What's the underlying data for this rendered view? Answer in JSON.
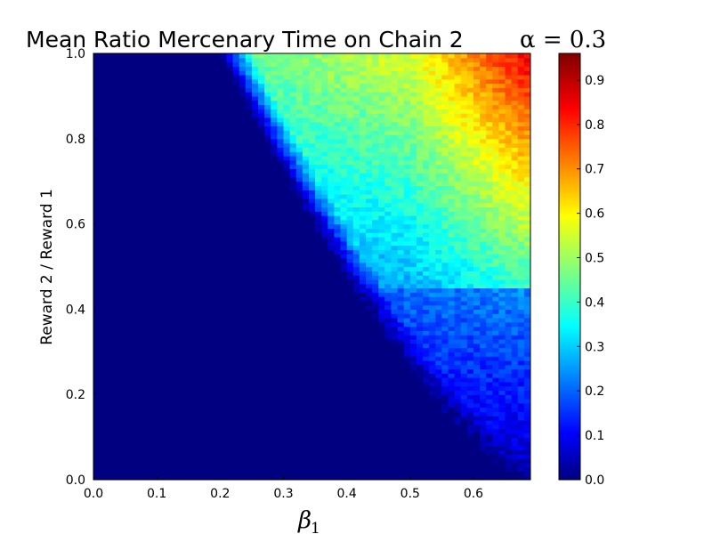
{
  "chart_data": {
    "type": "heatmap",
    "title": "Mean Ratio Mercenary Time on Chain 2",
    "title_param": "α = 0.3",
    "xlabel": "β",
    "xlabel_subscript": "1",
    "ylabel": "Reward 2 / Reward 1",
    "xlim": [
      0.0,
      0.69
    ],
    "ylim": [
      0.0,
      1.0
    ],
    "xticks": [
      "0.0",
      "0.1",
      "0.2",
      "0.3",
      "0.4",
      "0.5",
      "0.6"
    ],
    "yticks": [
      "0.0",
      "0.2",
      "0.4",
      "0.6",
      "0.8",
      "1.0"
    ],
    "colorbar": {
      "colormap": "jet",
      "range": [
        0.0,
        0.96
      ],
      "ticks": [
        "0.0",
        "0.1",
        "0.2",
        "0.3",
        "0.4",
        "0.5",
        "0.6",
        "0.7",
        "0.8",
        "0.9"
      ]
    },
    "grid": "off",
    "data_description_points": [
      {
        "x": 0.2,
        "y": 1.0,
        "value": 0.0
      },
      {
        "x": 0.25,
        "y": 0.8,
        "value": 0.0
      },
      {
        "x": 0.35,
        "y": 0.5,
        "value": 0.0
      },
      {
        "x": 0.5,
        "y": 0.2,
        "value": 0.0
      },
      {
        "x": 0.65,
        "y": 0.05,
        "value": 0.05
      },
      {
        "x": 0.3,
        "y": 0.95,
        "value": 0.33
      },
      {
        "x": 0.45,
        "y": 0.85,
        "value": 0.5
      },
      {
        "x": 0.55,
        "y": 0.9,
        "value": 0.7
      },
      {
        "x": 0.6,
        "y": 0.95,
        "value": 0.9
      },
      {
        "x": 0.68,
        "y": 0.95,
        "value": 0.93
      },
      {
        "x": 0.5,
        "y": 0.6,
        "value": 0.35
      },
      {
        "x": 0.6,
        "y": 0.4,
        "value": 0.18
      },
      {
        "x": 0.4,
        "y": 0.45,
        "value": 0.15
      }
    ]
  }
}
